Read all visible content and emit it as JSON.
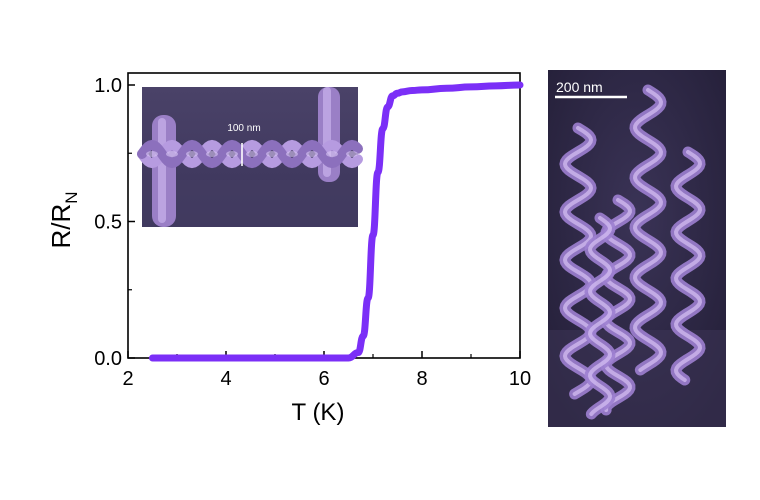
{
  "chart_data": {
    "type": "line",
    "xlabel": "T (K)",
    "ylabel_main": "R/R",
    "ylabel_sub": "N",
    "xlim": [
      2,
      10
    ],
    "ylim": [
      0,
      1.0
    ],
    "x_ticks": [
      "2",
      "4",
      "6",
      "8",
      "10"
    ],
    "y_ticks": [
      "0.0",
      "0.5",
      "1.0"
    ],
    "grid": false,
    "series": [
      {
        "color": "#7b2ff7",
        "x": [
          2.5,
          3.0,
          4.0,
          5.0,
          6.0,
          6.5,
          6.7,
          6.8,
          6.9,
          7.0,
          7.1,
          7.2,
          7.3,
          7.4,
          7.5,
          7.6,
          7.8,
          8.0,
          8.5,
          9.0,
          9.5,
          10.0
        ],
        "y": [
          0.0,
          0.0,
          0.0,
          0.0,
          0.0,
          0.0,
          0.02,
          0.08,
          0.22,
          0.45,
          0.68,
          0.84,
          0.92,
          0.96,
          0.97,
          0.975,
          0.98,
          0.982,
          0.988,
          0.993,
          0.997,
          1.0
        ]
      }
    ]
  },
  "inset": {
    "scale_label": "100 nm"
  },
  "side_image": {
    "scale_label": "200 nm"
  },
  "colors": {
    "curve": "#7b2ff7",
    "sem_dark": "#2a2540",
    "sem_wire": "#b48ee0"
  }
}
